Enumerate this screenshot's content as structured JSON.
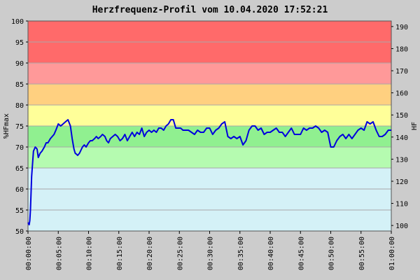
{
  "chart_data": {
    "type": "line",
    "title": "Herzfrequenz-Profil vom 10.04.2020 17:52:21",
    "ylabel_left": "%HFmax",
    "ylabel_right": "HF",
    "ylim": [
      50,
      100
    ],
    "y_right_lim": [
      97.5,
      192.5
    ],
    "xlim_minutes": [
      0,
      60
    ],
    "y_ticks_left": [
      "50",
      "55",
      "60",
      "65",
      "70",
      "75",
      "80",
      "85",
      "90",
      "95",
      "100"
    ],
    "y_ticks_right": [
      "100",
      "110",
      "120",
      "130",
      "140",
      "150",
      "160",
      "170",
      "180",
      "190"
    ],
    "x_ticks": [
      "00:00:00",
      "00:05:00",
      "00:10:00",
      "00:15:00",
      "00:20:00",
      "00:25:00",
      "00:30:00",
      "00:35:00",
      "00:40:00",
      "00:45:00",
      "00:50:00",
      "00:55:00",
      "01:00:00"
    ],
    "zones": [
      {
        "from": 50,
        "to": 65,
        "color": "#d4f1f7"
      },
      {
        "from": 65,
        "to": 70,
        "color": "#b5fbb0"
      },
      {
        "from": 70,
        "to": 75,
        "color": "#90f090"
      },
      {
        "from": 75,
        "to": 80,
        "color": "#ffff99"
      },
      {
        "from": 80,
        "to": 85,
        "color": "#ffd080"
      },
      {
        "from": 85,
        "to": 90,
        "color": "#ff9999"
      },
      {
        "from": 90,
        "to": 100,
        "color": "#ff6a6a"
      }
    ],
    "grid": true,
    "series": [
      {
        "color": "#0000dd",
        "x": [
          0,
          0.2,
          0.3,
          0.4,
          0.6,
          0.9,
          1.2,
          1.5,
          1.7,
          2.0,
          2.3,
          2.7,
          3.0,
          3.3,
          3.7,
          4.0,
          4.3,
          4.6,
          5.0,
          5.4,
          5.8,
          6.2,
          6.6,
          7.0,
          7.3,
          7.6,
          7.8,
          8.0,
          8.2,
          8.5,
          9.0,
          9.3,
          9.6,
          10.0,
          10.3,
          10.6,
          11.0,
          11.3,
          11.6,
          12.0,
          12.3,
          12.7,
          13.0,
          13.3,
          13.6,
          14.0,
          14.4,
          14.8,
          15.2,
          15.6,
          16.0,
          16.4,
          16.8,
          17.2,
          17.6,
          18.0,
          18.4,
          18.8,
          19.2,
          19.6,
          20.0,
          20.4,
          20.8,
          21.2,
          21.6,
          22.0,
          22.4,
          22.8,
          23.2,
          23.6,
          24.0,
          24.4,
          24.8,
          25.2,
          25.6,
          26.0,
          26.5,
          27.0,
          27.5,
          28.0,
          28.5,
          29.0,
          29.5,
          30.0,
          30.5,
          31.0,
          31.5,
          32.0,
          32.5,
          33.0,
          33.5,
          34.0,
          34.5,
          35.0,
          35.5,
          36.0,
          36.5,
          37.0,
          37.5,
          38.0,
          38.5,
          39.0,
          39.5,
          40.0,
          40.5,
          41.0,
          41.5,
          42.0,
          42.5,
          43.0,
          43.5,
          44.0,
          44.5,
          45.0,
          45.5,
          46.0,
          46.5,
          47.0,
          47.5,
          48.0,
          48.5,
          49.0,
          49.5,
          50.0,
          50.5,
          51.0,
          51.5,
          52.0,
          52.5,
          53.0,
          53.5,
          54.0,
          54.5,
          55.0,
          55.5,
          56.0,
          56.5,
          57.0,
          57.5,
          58.0,
          58.5,
          59.0,
          59.5,
          60.0
        ],
        "values": [
          52,
          51.5,
          52.5,
          55,
          63,
          69,
          70,
          69.5,
          67.5,
          68.5,
          69,
          70,
          71,
          71,
          72,
          72.5,
          73,
          74,
          75.5,
          75,
          75.5,
          76,
          76.5,
          75,
          72,
          69.5,
          68.5,
          68.3,
          68,
          68.5,
          70,
          70.5,
          70,
          71,
          71.5,
          71.5,
          72,
          72.5,
          72,
          72.5,
          73,
          72.5,
          71.5,
          71,
          72,
          72.5,
          73,
          72.5,
          71.5,
          72,
          73,
          71.5,
          72.5,
          73.5,
          72.5,
          73.5,
          73,
          74.5,
          72.5,
          73.5,
          74,
          73.5,
          74,
          73.5,
          74.5,
          74.5,
          74,
          75,
          75.5,
          76.5,
          76.5,
          74.5,
          74.5,
          74.5,
          74,
          74,
          74,
          73.5,
          73,
          74,
          73.5,
          73.5,
          74.5,
          74.5,
          73,
          74,
          74.5,
          75.5,
          76,
          72.5,
          72,
          72.5,
          72,
          72.5,
          70.5,
          71.5,
          74,
          75,
          75,
          74,
          74.5,
          73,
          73.5,
          73.5,
          74,
          74.5,
          73.5,
          73.5,
          72.5,
          73.5,
          74.5,
          73,
          73,
          73,
          74.5,
          74,
          74.5,
          74.5,
          75,
          74.5,
          73.5,
          74,
          73.5,
          70,
          70,
          71.5,
          72.5,
          73,
          72,
          73,
          72,
          73,
          74,
          74.5,
          74,
          76,
          75.5,
          76,
          74,
          72.5,
          72.5,
          73,
          74,
          74
        ]
      }
    ]
  }
}
